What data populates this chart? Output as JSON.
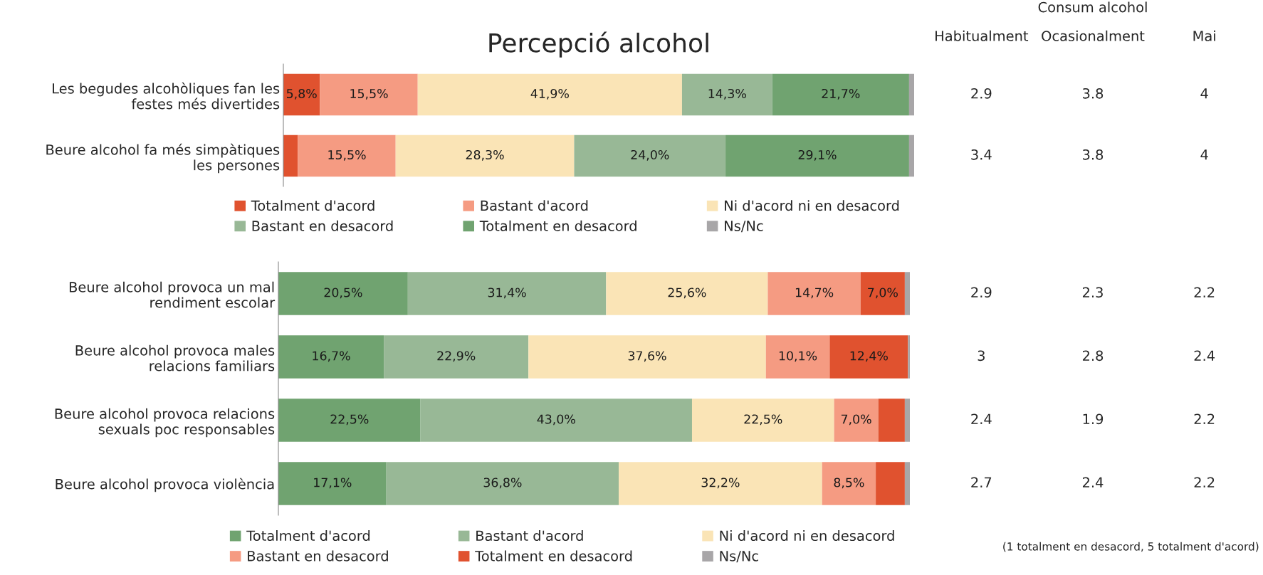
{
  "chart_data": [
    {
      "type": "bar",
      "orientation": "horizontal",
      "stacked": true,
      "title": "Percepció alcohol",
      "categories": [
        "Les begudes alcohòliques fan les\nfestes més divertides",
        "Beure alcohol fa més simpàtiques\nles persones"
      ],
      "xlim": [
        0,
        100
      ],
      "tick_labels": "y",
      "legend": "bottom",
      "series": [
        {
          "name": "Totalment d'acord",
          "color": "#e0522f",
          "values": [
            5.8,
            2.3
          ],
          "value_labels": [
            "5,8%",
            null
          ]
        },
        {
          "name": "Bastant d'acord",
          "color": "#f59b82",
          "values": [
            15.5,
            15.5
          ],
          "value_labels": [
            "15,5%",
            "15,5%"
          ]
        },
        {
          "name": "Ni d'acord ni en desacord",
          "color": "#fae4b6",
          "values": [
            41.9,
            28.3
          ],
          "value_labels": [
            "41,9%",
            "28,3%"
          ]
        },
        {
          "name": "Bastant en desacord",
          "color": "#98b896",
          "values": [
            14.3,
            24.0
          ],
          "value_labels": [
            "14,3%",
            "24,0%"
          ]
        },
        {
          "name": "Totalment en desacord",
          "color": "#70a370",
          "values": [
            21.7,
            29.1
          ],
          "value_labels": [
            "21,7%",
            "29,1%"
          ]
        },
        {
          "name": "Ns/Nc",
          "color": "#a8a6a8",
          "values": [
            0.8,
            0.8
          ],
          "value_labels": [
            null,
            null
          ]
        }
      ]
    },
    {
      "type": "other",
      "title": "Consum alcohol",
      "categories": [
        "Habitualment",
        "Ocasionalment",
        "Mai"
      ],
      "annotations": [
        "2.9",
        "3.8",
        "4",
        "3.4",
        "3.8",
        "4",
        "2.9",
        "2.3",
        "2.2",
        "3",
        "2.8",
        "2.4",
        "2.4",
        "1.9",
        "2.2",
        "2.7",
        "2.4",
        "2.2"
      ]
    },
    {
      "type": "bar",
      "orientation": "horizontal",
      "stacked": true,
      "categories": [
        "Beure alcohol provoca un mal\nrendiment escolar",
        "Beure alcohol provoca males\nrelacions familiars",
        "Beure alcohol provoca relacions\nsexuals poc responsables",
        "Beure alcohol provoca violència"
      ],
      "xlim": [
        0,
        100
      ],
      "tick_labels": "y",
      "legend": "bottom",
      "annotations": [
        "(1 totalment en desacord, 5 totalment d'acord)"
      ],
      "series": [
        {
          "name": "Totalment d'acord",
          "color": "#70a370",
          "values": [
            20.5,
            16.7,
            22.5,
            17.1
          ],
          "value_labels": [
            "20,5%",
            "16,7%",
            "22,5%",
            "17,1%"
          ]
        },
        {
          "name": "Bastant d'acord",
          "color": "#98b896",
          "values": [
            31.4,
            22.9,
            43.0,
            36.8
          ],
          "value_labels": [
            "31,4%",
            "22,9%",
            "43,0%",
            "36,8%"
          ]
        },
        {
          "name": "Ni d'acord ni en desacord",
          "color": "#fae4b6",
          "values": [
            25.6,
            37.6,
            22.5,
            32.2
          ],
          "value_labels": [
            "25,6%",
            "37,6%",
            "22,5%",
            "32,2%"
          ]
        },
        {
          "name": "Bastant en desacord",
          "color": "#f59b82",
          "values": [
            14.7,
            10.1,
            7.0,
            8.5
          ],
          "value_labels": [
            "14,7%",
            "10,1%",
            "7,0%",
            "8,5%"
          ]
        },
        {
          "name": "Totalment en desacord",
          "color": "#e0522f",
          "values": [
            7.0,
            12.4,
            4.2,
            4.6
          ],
          "value_labels": [
            "7,0%",
            "12,4%",
            null,
            null
          ]
        },
        {
          "name": "Ns/Nc",
          "color": "#a8a6a8",
          "values": [
            0.8,
            0.3,
            0.8,
            0.8
          ],
          "value_labels": [
            null,
            null,
            null,
            null
          ]
        }
      ]
    }
  ]
}
